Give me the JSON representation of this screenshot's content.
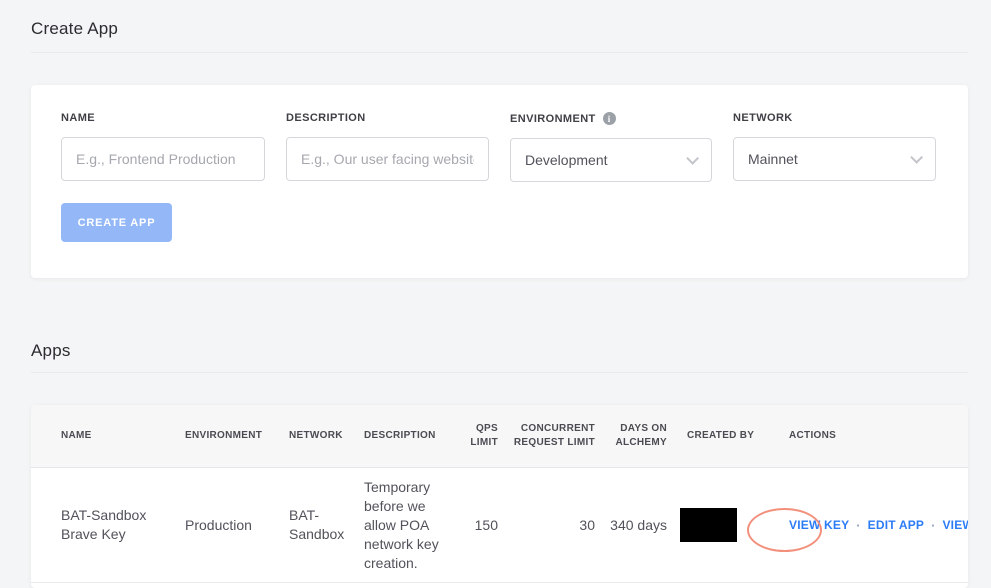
{
  "create_app": {
    "title": "Create App",
    "fields": {
      "name": {
        "label": "NAME",
        "placeholder": "E.g., Frontend Production"
      },
      "description": {
        "label": "DESCRIPTION",
        "placeholder": "E.g., Our user facing website"
      },
      "environment": {
        "label": "ENVIRONMENT",
        "value": "Development"
      },
      "network": {
        "label": "NETWORK",
        "value": "Mainnet"
      }
    },
    "submit_label": "CREATE APP"
  },
  "apps": {
    "title": "Apps",
    "table": {
      "columns": [
        "NAME",
        "ENVIRONMENT",
        "NETWORK",
        "DESCRIPTION",
        "QPS LIMIT",
        "CONCURRENT REQUEST LIMIT",
        "DAYS ON ALCHEMY",
        "CREATED BY",
        "ACTIONS"
      ],
      "rows": [
        {
          "name": "BAT-Sandbox Brave Key",
          "environment": "Production",
          "network": "BAT-Sandbox",
          "description": "Temporary before we allow POA network key creation.",
          "qps_limit": "150",
          "concurrent_request_limit": "30",
          "days_on_alchemy": "340 days",
          "created_by": "",
          "actions": [
            "VIEW KEY",
            "EDIT APP",
            "VIEW DETAILS"
          ]
        }
      ]
    }
  },
  "icons": {
    "info": "i",
    "action_separator": "·"
  },
  "colors": {
    "accent_link": "#2b7cf6",
    "button_bg": "#93b7f7",
    "annotation_ellipse": "#f2907c",
    "page_bg": "#f4f5f6",
    "redaction": "#000000"
  }
}
